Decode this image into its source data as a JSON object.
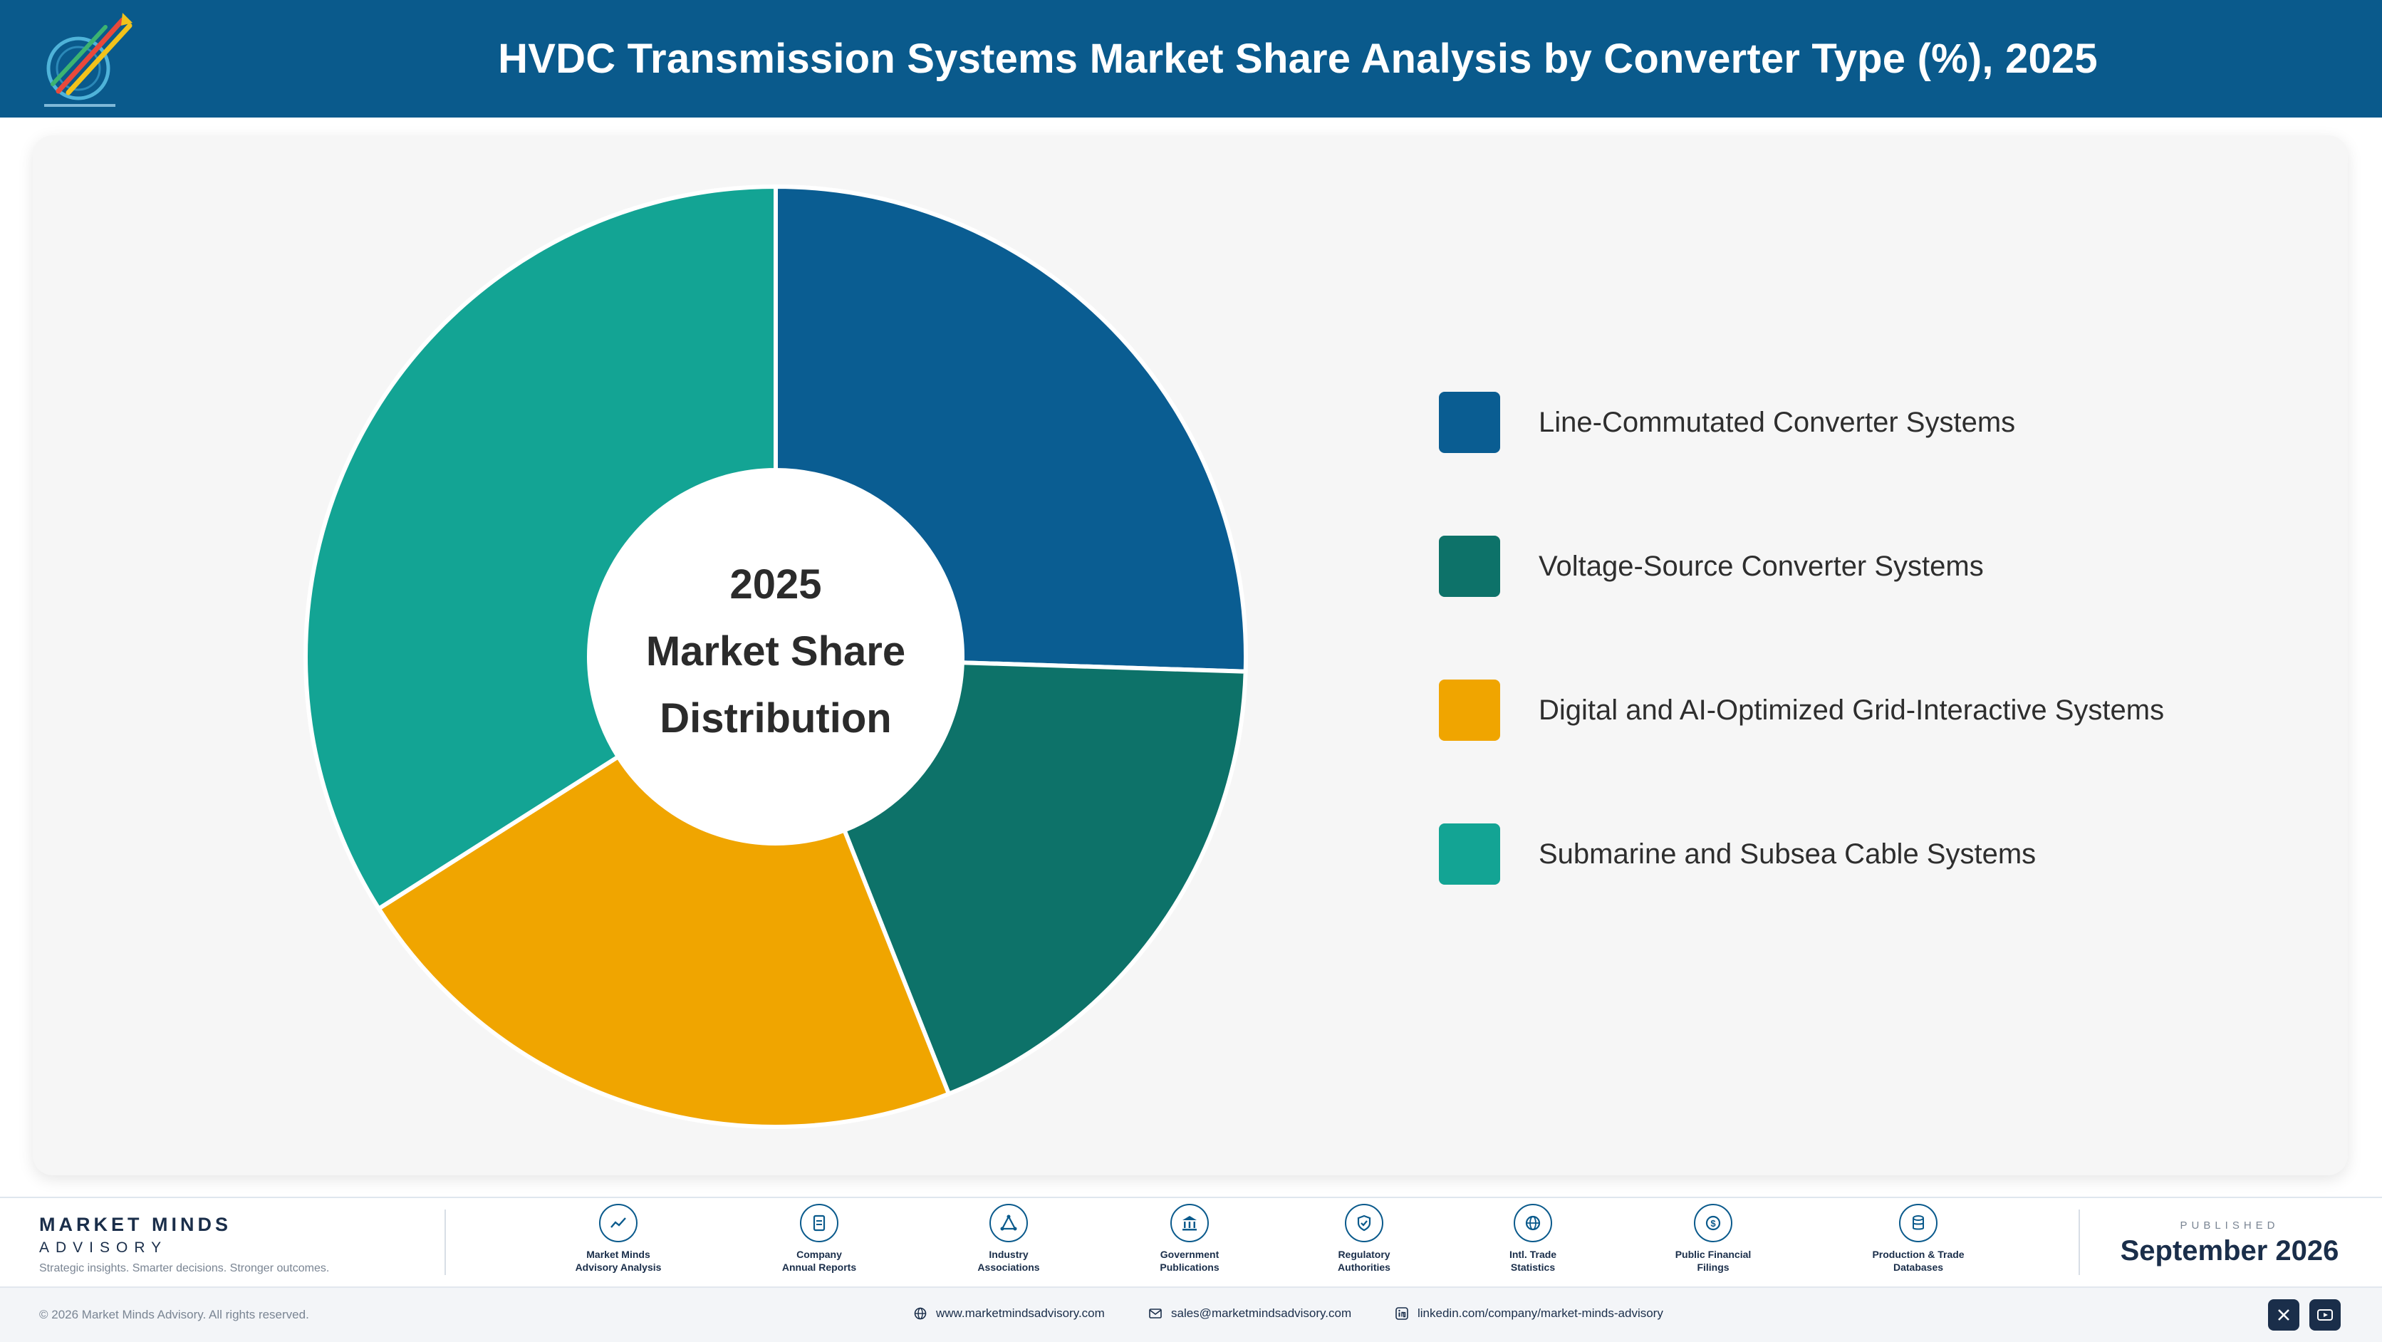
{
  "header": {
    "title": "HVDC Transmission Systems Market Share Analysis by Converter Type (%), 2025",
    "logo_icon": "market-minds-logo"
  },
  "chart_data": {
    "type": "pie",
    "donut": true,
    "title": "HVDC Transmission Systems Market Share Analysis by Converter Type (%), 2025",
    "center_label": [
      "2025",
      "Market Share",
      "Distribution"
    ],
    "categories": [
      "Line-Commutated Converter Systems",
      "Voltage-Source Converter Systems",
      "Digital and AI-Optimized Grid-Interactive Systems",
      "Submarine and Subsea Cable Systems"
    ],
    "values": [
      25.5,
      18.5,
      22.0,
      34.0
    ],
    "colors": [
      "#0a5d92",
      "#0d7269",
      "#f0a500",
      "#13a494"
    ],
    "legend_position": "right"
  },
  "footer": {
    "brand_name": "MARKET MINDS",
    "brand_sub": "ADVISORY",
    "tagline": "Strategic insights. Smarter decisions. Stronger outcomes.",
    "sources": [
      {
        "line1": "Market Minds",
        "line2": "Advisory Analysis",
        "icon": "trend-line-icon"
      },
      {
        "line1": "Company",
        "line2": "Annual Reports",
        "icon": "document-icon"
      },
      {
        "line1": "Industry",
        "line2": "Associations",
        "icon": "network-icon"
      },
      {
        "line1": "Government",
        "line2": "Publications",
        "icon": "government-building-icon"
      },
      {
        "line1": "Regulatory",
        "line2": "Authorities",
        "icon": "shield-check-icon"
      },
      {
        "line1": "Intl. Trade",
        "line2": "Statistics",
        "icon": "globe-icon"
      },
      {
        "line1": "Public Financial",
        "line2": "Filings",
        "icon": "currency-icon"
      },
      {
        "line1": "Production & Trade",
        "line2": "Databases",
        "icon": "database-icon"
      }
    ],
    "published_label": "PUBLISHED",
    "published_date": "September 2026",
    "copyright": "© 2026 Market Minds Advisory. All rights reserved.",
    "website": "www.marketmindsadvisory.com",
    "email": "sales@marketmindsadvisory.com",
    "linkedin": "linkedin.com/company/market-minds-advisory"
  }
}
